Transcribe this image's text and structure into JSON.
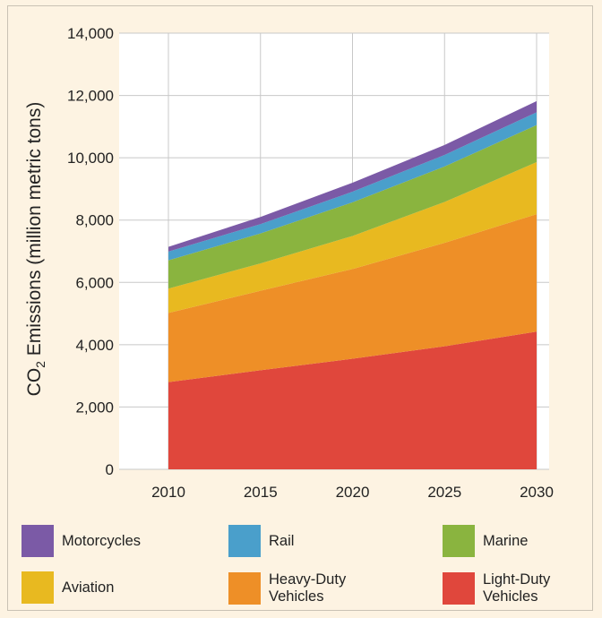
{
  "chart_data": {
    "type": "area",
    "stacked": true,
    "title": "",
    "xlabel": "",
    "ylabel_prefix": "CO",
    "ylabel_subscript": "2",
    "ylabel_suffix": " Emissions (million metric tons)",
    "x": [
      2010,
      2015,
      2020,
      2025,
      2030
    ],
    "xticks": [
      "2010",
      "2015",
      "2020",
      "2025",
      "2030"
    ],
    "yticks": [
      "0",
      "2,000",
      "4,000",
      "6,000",
      "8,000",
      "10,000",
      "12,000",
      "14,000"
    ],
    "ylim": [
      0,
      14000
    ],
    "grid": true,
    "legend_position": "bottom",
    "series": [
      {
        "name": "Light-Duty Vehicles",
        "color": "#e0473c",
        "values": [
          2800,
          3180,
          3550,
          3950,
          4420
        ]
      },
      {
        "name": "Heavy-Duty Vehicles",
        "color": "#ee8f27",
        "values": [
          2220,
          2550,
          2880,
          3320,
          3770
        ]
      },
      {
        "name": "Aviation",
        "color": "#e8b920",
        "values": [
          780,
          880,
          1060,
          1310,
          1670
        ]
      },
      {
        "name": "Marine",
        "color": "#8ab43f",
        "values": [
          910,
          960,
          1080,
          1140,
          1190
        ]
      },
      {
        "name": "Rail",
        "color": "#4a9fcb",
        "values": [
          280,
          300,
          340,
          370,
          410
        ]
      },
      {
        "name": "Motorcycles",
        "color": "#7b5aa6",
        "values": [
          150,
          230,
          290,
          320,
          360
        ]
      }
    ]
  },
  "legend": [
    {
      "label": "Motorcycles",
      "color": "#7b5aa6"
    },
    {
      "label": "Rail",
      "color": "#4a9fcb"
    },
    {
      "label": "Marine",
      "color": "#8ab43f"
    },
    {
      "label": "Aviation",
      "color": "#e8b920"
    },
    {
      "label": "Heavy-Duty Vehicles",
      "color": "#ee8f27"
    },
    {
      "label": "Light-Duty Vehicles",
      "color": "#e0473c"
    }
  ]
}
